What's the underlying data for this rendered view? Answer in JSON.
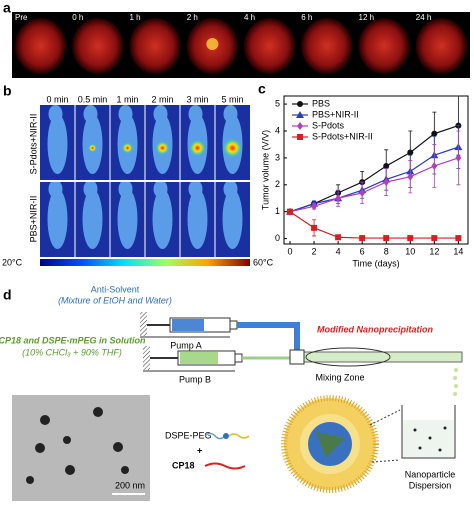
{
  "panel_a": {
    "label": "a",
    "times": [
      "Pre",
      "0 h",
      "1 h",
      "2 h",
      "4 h",
      "6 h",
      "12 h",
      "24 h"
    ]
  },
  "panel_b": {
    "label": "b",
    "times": [
      "0 min",
      "0.5 min",
      "1 min",
      "2 min",
      "3 min",
      "5 min"
    ],
    "rows": [
      "S-Pdots+NIR-II",
      "PBS+NIR-II"
    ],
    "scale_min": "20°C",
    "scale_max": "60°C"
  },
  "chart_data": {
    "type": "line",
    "panel_label": "c",
    "x_label": "Time (days)",
    "y_label": "Tumor volume (V/V)",
    "x": [
      0,
      2,
      4,
      6,
      8,
      10,
      12,
      14
    ],
    "series": [
      {
        "name": "PBS",
        "color": "#111111",
        "marker": "circle",
        "values": [
          1,
          1.3,
          1.7,
          2.1,
          2.7,
          3.2,
          3.9,
          4.2
        ],
        "errors": [
          0,
          0.1,
          0.3,
          0.4,
          0.6,
          0.8,
          0.8,
          1.1
        ]
      },
      {
        "name": "PBS+NIR-II",
        "color": "#2b3fb0",
        "marker": "triangle",
        "values": [
          1,
          1.3,
          1.5,
          1.8,
          2.2,
          2.5,
          3.1,
          3.4
        ],
        "errors": [
          0,
          0.1,
          0.2,
          0.3,
          0.4,
          0.6,
          0.7,
          0.8
        ]
      },
      {
        "name": "S-Pdots",
        "color": "#b040c0",
        "marker": "diamond",
        "values": [
          1,
          1.2,
          1.5,
          1.7,
          2.1,
          2.3,
          2.7,
          3.0
        ],
        "errors": [
          0,
          0.1,
          0.3,
          0.4,
          0.5,
          0.6,
          0.8,
          1.0
        ]
      },
      {
        "name": "S-Pdots+NIR-II",
        "color": "#d42020",
        "marker": "square",
        "values": [
          1,
          0.4,
          0.05,
          0.02,
          0.02,
          0.02,
          0.02,
          0.02
        ],
        "errors": [
          0,
          0.3,
          0.05,
          0,
          0,
          0,
          0,
          0
        ]
      }
    ],
    "xlim": [
      -0.5,
      14.8
    ],
    "xticks": [
      0,
      2,
      4,
      6,
      8,
      10,
      12,
      14
    ],
    "ylim": [
      -0.2,
      5.3
    ],
    "yticks": [
      0,
      1,
      2,
      3,
      4,
      5
    ]
  },
  "panel_d": {
    "label": "d",
    "anti_solvent": "Anti-Solvent",
    "anti_solvent_detail": "(Mixture of EtOH and Water)",
    "pump_a": "Pump A",
    "solution": "CP18 and DSPE-mPEG in Solution",
    "solution_detail": "(10% CHCl₃ + 90% THF)",
    "pump_b": "Pump B",
    "method": "Modified Nanoprecipitation",
    "mixing_zone": "Mixing Zone",
    "dispersion_1": "Nanoparticle",
    "dispersion_2": "Dispersion",
    "dspe_peg": "DSPE-PEG",
    "plus": "+",
    "cp18": "CP18",
    "scale_bar": "200 nm"
  }
}
